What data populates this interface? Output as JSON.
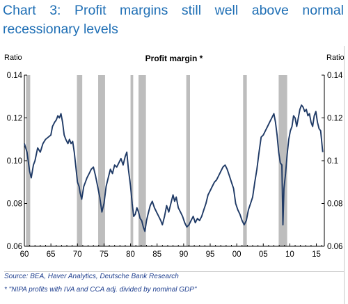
{
  "title": "Chart 3: Profit margins still well above normal recessionary levels",
  "source_text": "Source: BEA, Haver Analytics, Deutsche Bank Research",
  "footnote_text": "* \"NIPA profits with IVA and CCA adj. divided by nominal GDP\"",
  "colors": {
    "title": "#1f6fb5",
    "line": "#1f3a66",
    "recession": "#bdbdbd",
    "source": "#1f3f8f"
  },
  "chart_data": {
    "type": "line",
    "title": "Profit margin *",
    "ylabel_left": "Ratio",
    "ylabel_right": "Ratio",
    "xlim": [
      1960,
      2016.5
    ],
    "ylim": [
      0.06,
      0.14
    ],
    "y_ticks_left": [
      {
        "value": 0.06,
        "label": "0.06"
      },
      {
        "value": 0.08,
        "label": "0.08"
      },
      {
        "value": 0.1,
        "label": "0.10"
      },
      {
        "value": 0.12,
        "label": "0.12"
      },
      {
        "value": 0.14,
        "label": "0.14"
      }
    ],
    "y_ticks_right": [
      {
        "value": 0.06,
        "label": "0.06"
      },
      {
        "value": 0.08,
        "label": "0.08"
      },
      {
        "value": 0.1,
        "label": "0.1"
      },
      {
        "value": 0.12,
        "label": "0.12"
      },
      {
        "value": 0.14,
        "label": "0.14"
      }
    ],
    "x_ticks": [
      {
        "value": 1960,
        "label": "60"
      },
      {
        "value": 1965,
        "label": "65"
      },
      {
        "value": 1970,
        "label": "70"
      },
      {
        "value": 1975,
        "label": "75"
      },
      {
        "value": 1980,
        "label": "80"
      },
      {
        "value": 1985,
        "label": "85"
      },
      {
        "value": 1990,
        "label": "90"
      },
      {
        "value": 1995,
        "label": "95"
      },
      {
        "value": 2000,
        "label": "00"
      },
      {
        "value": 2005,
        "label": "05"
      },
      {
        "value": 2010,
        "label": "10"
      },
      {
        "value": 2015,
        "label": "15"
      }
    ],
    "recessions": [
      [
        1960.3,
        1961.1
      ],
      [
        1969.9,
        1970.9
      ],
      [
        1973.9,
        1975.2
      ],
      [
        1980.0,
        1980.5
      ],
      [
        1981.5,
        1982.9
      ],
      [
        1990.5,
        1991.2
      ],
      [
        2001.2,
        2001.9
      ],
      [
        2007.9,
        2009.5
      ]
    ],
    "series": [
      {
        "points": [
          [
            1960.0,
            0.108
          ],
          [
            1960.5,
            0.104
          ],
          [
            1961.0,
            0.095
          ],
          [
            1961.3,
            0.092
          ],
          [
            1961.7,
            0.098
          ],
          [
            1962.0,
            0.1
          ],
          [
            1962.5,
            0.106
          ],
          [
            1963.0,
            0.104
          ],
          [
            1963.5,
            0.108
          ],
          [
            1964.0,
            0.11
          ],
          [
            1964.5,
            0.111
          ],
          [
            1965.0,
            0.112
          ],
          [
            1965.3,
            0.116
          ],
          [
            1965.7,
            0.118
          ],
          [
            1966.0,
            0.119
          ],
          [
            1966.3,
            0.121
          ],
          [
            1966.6,
            0.12
          ],
          [
            1966.9,
            0.122
          ],
          [
            1967.2,
            0.118
          ],
          [
            1967.5,
            0.112
          ],
          [
            1967.8,
            0.11
          ],
          [
            1968.2,
            0.108
          ],
          [
            1968.5,
            0.11
          ],
          [
            1968.8,
            0.108
          ],
          [
            1969.1,
            0.109
          ],
          [
            1969.4,
            0.104
          ],
          [
            1969.7,
            0.097
          ],
          [
            1970.0,
            0.09
          ],
          [
            1970.3,
            0.088
          ],
          [
            1970.5,
            0.085
          ],
          [
            1970.8,
            0.082
          ],
          [
            1971.2,
            0.088
          ],
          [
            1971.5,
            0.09
          ],
          [
            1971.8,
            0.092
          ],
          [
            1972.2,
            0.094
          ],
          [
            1972.6,
            0.096
          ],
          [
            1973.0,
            0.097
          ],
          [
            1973.4,
            0.093
          ],
          [
            1973.8,
            0.088
          ],
          [
            1974.2,
            0.083
          ],
          [
            1974.6,
            0.076
          ],
          [
            1975.0,
            0.08
          ],
          [
            1975.4,
            0.088
          ],
          [
            1975.8,
            0.092
          ],
          [
            1976.2,
            0.096
          ],
          [
            1976.6,
            0.094
          ],
          [
            1977.0,
            0.098
          ],
          [
            1977.4,
            0.097
          ],
          [
            1977.8,
            0.099
          ],
          [
            1978.2,
            0.101
          ],
          [
            1978.6,
            0.098
          ],
          [
            1979.0,
            0.102
          ],
          [
            1979.3,
            0.104
          ],
          [
            1979.6,
            0.096
          ],
          [
            1980.0,
            0.088
          ],
          [
            1980.3,
            0.08
          ],
          [
            1980.6,
            0.074
          ],
          [
            1980.9,
            0.075
          ],
          [
            1981.2,
            0.078
          ],
          [
            1981.5,
            0.076
          ],
          [
            1981.8,
            0.073
          ],
          [
            1982.1,
            0.072
          ],
          [
            1982.4,
            0.069
          ],
          [
            1982.7,
            0.067
          ],
          [
            1983.0,
            0.072
          ],
          [
            1983.3,
            0.075
          ],
          [
            1983.7,
            0.079
          ],
          [
            1984.1,
            0.081
          ],
          [
            1984.5,
            0.078
          ],
          [
            1984.9,
            0.076
          ],
          [
            1985.3,
            0.074
          ],
          [
            1985.7,
            0.072
          ],
          [
            1986.0,
            0.07
          ],
          [
            1986.4,
            0.074
          ],
          [
            1986.8,
            0.079
          ],
          [
            1987.2,
            0.076
          ],
          [
            1987.6,
            0.08
          ],
          [
            1988.0,
            0.084
          ],
          [
            1988.3,
            0.081
          ],
          [
            1988.6,
            0.083
          ],
          [
            1989.0,
            0.078
          ],
          [
            1989.4,
            0.076
          ],
          [
            1989.8,
            0.074
          ],
          [
            1990.2,
            0.071
          ],
          [
            1990.6,
            0.069
          ],
          [
            1991.0,
            0.07
          ],
          [
            1991.4,
            0.072
          ],
          [
            1991.8,
            0.074
          ],
          [
            1992.2,
            0.071
          ],
          [
            1992.6,
            0.073
          ],
          [
            1993.0,
            0.072
          ],
          [
            1993.4,
            0.074
          ],
          [
            1993.8,
            0.077
          ],
          [
            1994.2,
            0.08
          ],
          [
            1994.6,
            0.084
          ],
          [
            1995.0,
            0.086
          ],
          [
            1995.4,
            0.088
          ],
          [
            1995.8,
            0.09
          ],
          [
            1996.2,
            0.091
          ],
          [
            1996.6,
            0.093
          ],
          [
            1997.0,
            0.095
          ],
          [
            1997.4,
            0.097
          ],
          [
            1997.8,
            0.098
          ],
          [
            1998.2,
            0.096
          ],
          [
            1998.6,
            0.093
          ],
          [
            1999.0,
            0.09
          ],
          [
            1999.4,
            0.087
          ],
          [
            1999.8,
            0.08
          ],
          [
            2000.2,
            0.077
          ],
          [
            2000.6,
            0.075
          ],
          [
            2001.0,
            0.072
          ],
          [
            2001.4,
            0.07
          ],
          [
            2001.8,
            0.072
          ],
          [
            2002.2,
            0.077
          ],
          [
            2002.6,
            0.08
          ],
          [
            2003.0,
            0.083
          ],
          [
            2003.4,
            0.09
          ],
          [
            2003.8,
            0.096
          ],
          [
            2004.2,
            0.104
          ],
          [
            2004.6,
            0.111
          ],
          [
            2005.0,
            0.112
          ],
          [
            2005.4,
            0.114
          ],
          [
            2005.8,
            0.116
          ],
          [
            2006.2,
            0.118
          ],
          [
            2006.6,
            0.12
          ],
          [
            2007.0,
            0.122
          ],
          [
            2007.3,
            0.118
          ],
          [
            2007.6,
            0.112
          ],
          [
            2007.9,
            0.104
          ],
          [
            2008.2,
            0.099
          ],
          [
            2008.5,
            0.098
          ],
          [
            2008.7,
            0.07
          ],
          [
            2008.9,
            0.087
          ],
          [
            2009.2,
            0.094
          ],
          [
            2009.5,
            0.103
          ],
          [
            2009.8,
            0.11
          ],
          [
            2010.1,
            0.114
          ],
          [
            2010.4,
            0.116
          ],
          [
            2010.7,
            0.121
          ],
          [
            2011.0,
            0.12
          ],
          [
            2011.3,
            0.116
          ],
          [
            2011.6,
            0.12
          ],
          [
            2011.9,
            0.124
          ],
          [
            2012.2,
            0.126
          ],
          [
            2012.5,
            0.125
          ],
          [
            2012.8,
            0.123
          ],
          [
            2013.1,
            0.124
          ],
          [
            2013.4,
            0.121
          ],
          [
            2013.7,
            0.122
          ],
          [
            2014.0,
            0.118
          ],
          [
            2014.3,
            0.116
          ],
          [
            2014.6,
            0.121
          ],
          [
            2014.9,
            0.123
          ],
          [
            2015.2,
            0.118
          ],
          [
            2015.5,
            0.115
          ],
          [
            2015.8,
            0.114
          ],
          [
            2016.0,
            0.109
          ],
          [
            2016.2,
            0.104
          ]
        ]
      }
    ]
  }
}
